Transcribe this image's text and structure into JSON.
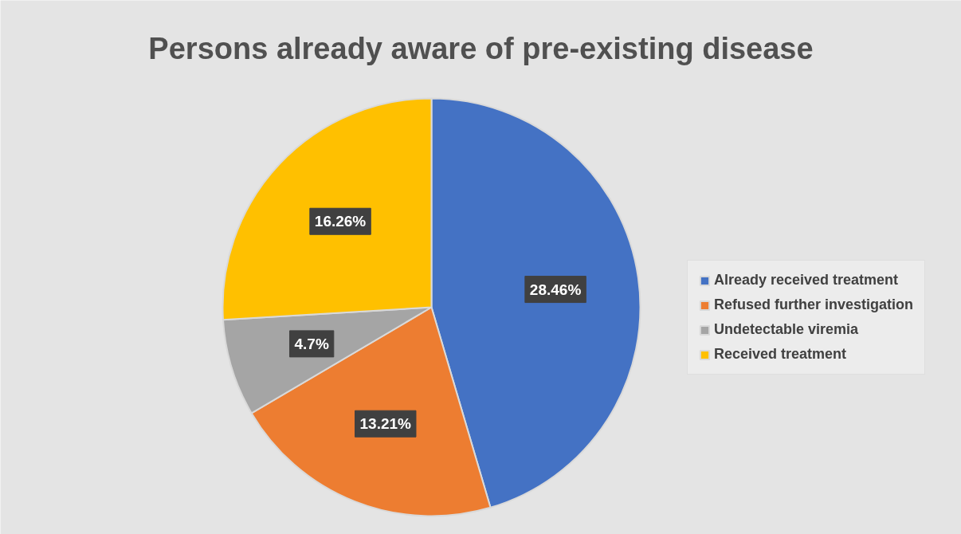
{
  "chart_data": {
    "type": "pie",
    "title": "Persons already aware of pre-existing disease",
    "categories": [
      "Already received treatment",
      "Refused further investigation",
      "Undetectable viremia",
      "Received treatment"
    ],
    "values": [
      28.46,
      13.21,
      4.7,
      16.26
    ],
    "colors": [
      "#4472c4",
      "#ed7d31",
      "#a5a5a5",
      "#ffc000"
    ],
    "value_labels": [
      "28.46%",
      "13.21%",
      "4.7%",
      "16.26%"
    ],
    "legend": "right"
  }
}
